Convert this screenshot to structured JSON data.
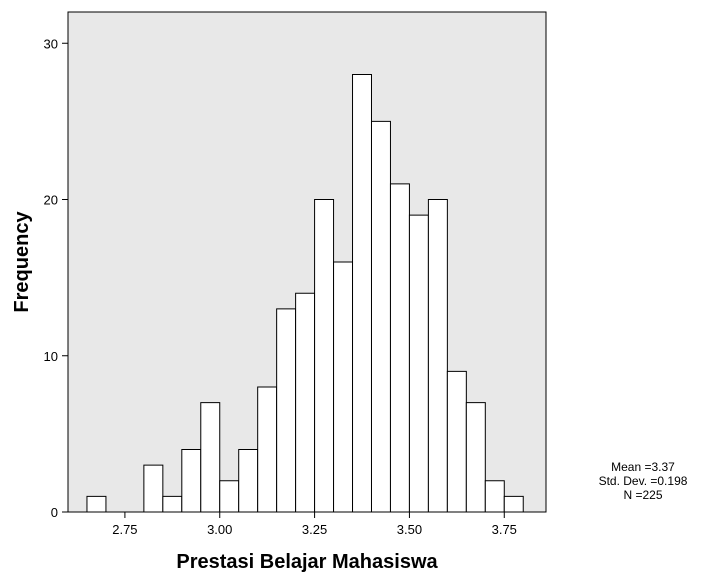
{
  "chart_data": {
    "type": "bar",
    "subtype": "histogram",
    "xlabel": "Prestasi Belajar Mahasiswa",
    "ylabel": "Frequency",
    "xlim": [
      2.6,
      3.86
    ],
    "ylim": [
      0,
      32
    ],
    "x_ticks": [
      2.75,
      3.0,
      3.25,
      3.5,
      3.75
    ],
    "x_tick_labels": [
      "2.75",
      "3.00",
      "3.25",
      "3.50",
      "3.75"
    ],
    "y_ticks": [
      0,
      10,
      20,
      30
    ],
    "y_tick_labels": [
      "0",
      "10",
      "20",
      "30"
    ],
    "bin_width": 0.05,
    "bins": [
      {
        "x": 2.675,
        "value": 1
      },
      {
        "x": 2.725,
        "value": 0
      },
      {
        "x": 2.775,
        "value": 0
      },
      {
        "x": 2.825,
        "value": 3
      },
      {
        "x": 2.875,
        "value": 1
      },
      {
        "x": 2.925,
        "value": 4
      },
      {
        "x": 2.975,
        "value": 7
      },
      {
        "x": 3.025,
        "value": 2
      },
      {
        "x": 3.075,
        "value": 4
      },
      {
        "x": 3.125,
        "value": 8
      },
      {
        "x": 3.175,
        "value": 13
      },
      {
        "x": 3.225,
        "value": 14
      },
      {
        "x": 3.275,
        "value": 20
      },
      {
        "x": 3.325,
        "value": 16
      },
      {
        "x": 3.375,
        "value": 28
      },
      {
        "x": 3.425,
        "value": 25
      },
      {
        "x": 3.475,
        "value": 21
      },
      {
        "x": 3.525,
        "value": 19
      },
      {
        "x": 3.575,
        "value": 20
      },
      {
        "x": 3.625,
        "value": 9
      },
      {
        "x": 3.675,
        "value": 7
      },
      {
        "x": 3.725,
        "value": 2
      },
      {
        "x": 3.775,
        "value": 1
      }
    ],
    "grid": false,
    "plot_background": "#e8e8e8",
    "bar_fill": "#ffffff",
    "bar_stroke": "#000000",
    "stats": {
      "mean": "Mean =3.37",
      "std_dev": "Std. Dev. =0.198",
      "n": "N =225"
    }
  }
}
